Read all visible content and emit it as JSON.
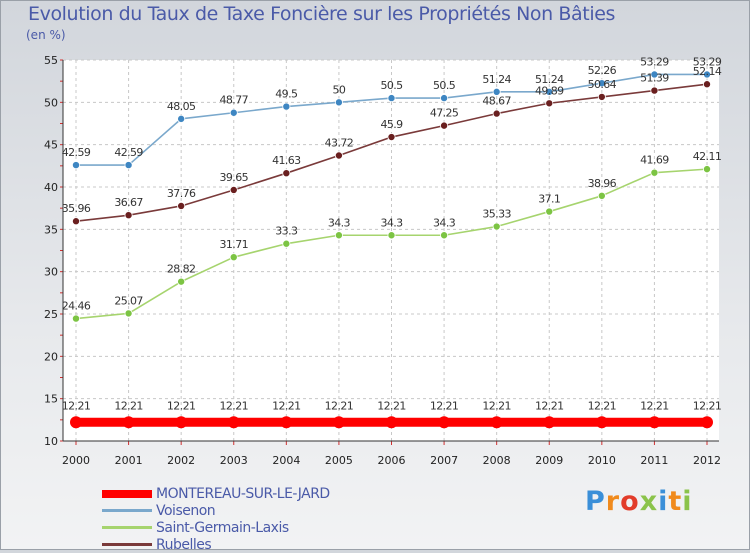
{
  "chart_data": {
    "type": "line",
    "title": "Evolution du Taux de Taxe Foncière sur les Propriétés Non Bâties",
    "subtitle": "(en %)",
    "xlabel": "",
    "ylabel": "",
    "x": [
      "2000",
      "2001",
      "2002",
      "2003",
      "2004",
      "2005",
      "2006",
      "2007",
      "2008",
      "2009",
      "2010",
      "2011",
      "2012"
    ],
    "ylim": [
      10,
      55
    ],
    "yticks": [
      "10",
      "15",
      "20",
      "25",
      "30",
      "35",
      "40",
      "45",
      "50",
      "55"
    ],
    "grid": true,
    "legend_position": "bottom-left",
    "series": [
      {
        "name": "MONTEREAU-SUR-LE-JARD",
        "color": "#ff0000",
        "marker": "#ff0000",
        "values": [
          12.21,
          12.21,
          12.21,
          12.21,
          12.21,
          12.21,
          12.21,
          12.21,
          12.21,
          12.21,
          12.21,
          12.21,
          12.21
        ],
        "labels": [
          "12.21",
          "12.21",
          "12.21",
          "12.21",
          "12.21",
          "12.21",
          "12.21",
          "12.21",
          "12.21",
          "12.21",
          "12.21",
          "12.21",
          "12.21"
        ]
      },
      {
        "name": "Voisenon",
        "color": "#7aa8cc",
        "marker": "#3e86c2",
        "values": [
          42.59,
          42.59,
          48.05,
          48.77,
          49.5,
          50,
          50.5,
          50.5,
          51.24,
          51.24,
          52.26,
          53.29,
          53.29
        ],
        "labels": [
          "42.59",
          "42.59",
          "48.05",
          "48.77",
          "49.5",
          "50",
          "50.5",
          "50.5",
          "51.24",
          "51.24",
          "52.26",
          "53.29",
          "53.29"
        ]
      },
      {
        "name": "Saint-Germain-Laxis",
        "color": "#a6d46e",
        "marker": "#7cc443",
        "values": [
          24.46,
          25.07,
          28.82,
          31.71,
          33.3,
          34.3,
          34.3,
          34.3,
          35.33,
          37.1,
          38.96,
          41.69,
          42.11
        ],
        "labels": [
          "24.46",
          "25.07",
          "28.82",
          "31.71",
          "33.3",
          "34.3",
          "34.3",
          "34.3",
          "35.33",
          "37.1",
          "38.96",
          "41.69",
          "42.11"
        ]
      },
      {
        "name": "Rubelles",
        "color": "#7a3a3a",
        "marker": "#6a1f1f",
        "values": [
          35.96,
          36.67,
          37.76,
          39.65,
          41.63,
          43.72,
          45.9,
          47.25,
          48.67,
          49.89,
          50.64,
          51.39,
          52.14
        ],
        "labels": [
          "35.96",
          "36.67",
          "37.76",
          "39.65",
          "41.63",
          "43.72",
          "45.9",
          "47.25",
          "48.67",
          "49.89",
          "50.64",
          "51.39",
          "52.14"
        ]
      }
    ]
  },
  "logo": {
    "letters": [
      "P",
      "r",
      "o",
      "x",
      "i",
      "t",
      "i"
    ],
    "colors": [
      "#3a8fd8",
      "#f08a1c",
      "#e23c2a",
      "#8bc34a",
      "#3a8fd8",
      "#f08a1c",
      "#8bc34a"
    ]
  }
}
